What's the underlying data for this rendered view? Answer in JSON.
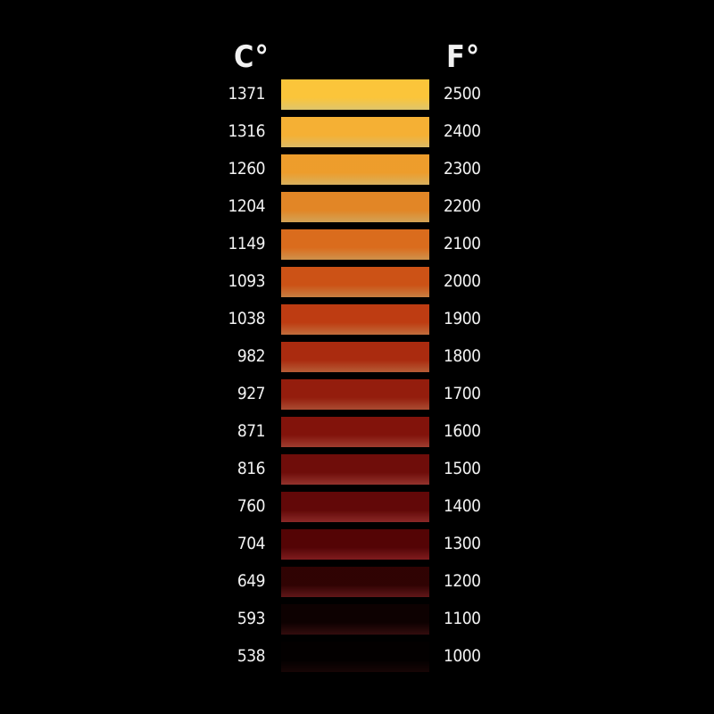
{
  "chart_data": {
    "type": "table",
    "headers": {
      "celsius": "C°",
      "fahrenheit": "F°"
    },
    "rows": [
      {
        "c": "1371",
        "f": "2500",
        "color": "#fde07a"
      },
      {
        "c": "1316",
        "f": "2400",
        "color": "#fad473"
      },
      {
        "c": "1260",
        "f": "2300",
        "color": "#f6c86a"
      },
      {
        "c": "1204",
        "f": "2200",
        "color": "#f0b962"
      },
      {
        "c": "1149",
        "f": "2100",
        "color": "#eca656"
      },
      {
        "c": "1093",
        "f": "2000",
        "color": "#e4914b"
      },
      {
        "c": "1038",
        "f": "1900",
        "color": "#dc7c44"
      },
      {
        "c": "982",
        "f": "1800",
        "color": "#d0693e"
      },
      {
        "c": "927",
        "f": "1700",
        "color": "#c25639"
      },
      {
        "c": "871",
        "f": "1600",
        "color": "#b64636"
      },
      {
        "c": "816",
        "f": "1500",
        "color": "#a83a33"
      },
      {
        "c": "760",
        "f": "1400",
        "color": "#9e2e2c"
      },
      {
        "c": "704",
        "f": "1300",
        "color": "#922124"
      },
      {
        "c": "649",
        "f": "1200",
        "color": "#6e1a1c"
      },
      {
        "c": "593",
        "f": "1100",
        "color": "#3a0e0f"
      },
      {
        "c": "538",
        "f": "1000",
        "color": "#1a0606"
      }
    ]
  }
}
